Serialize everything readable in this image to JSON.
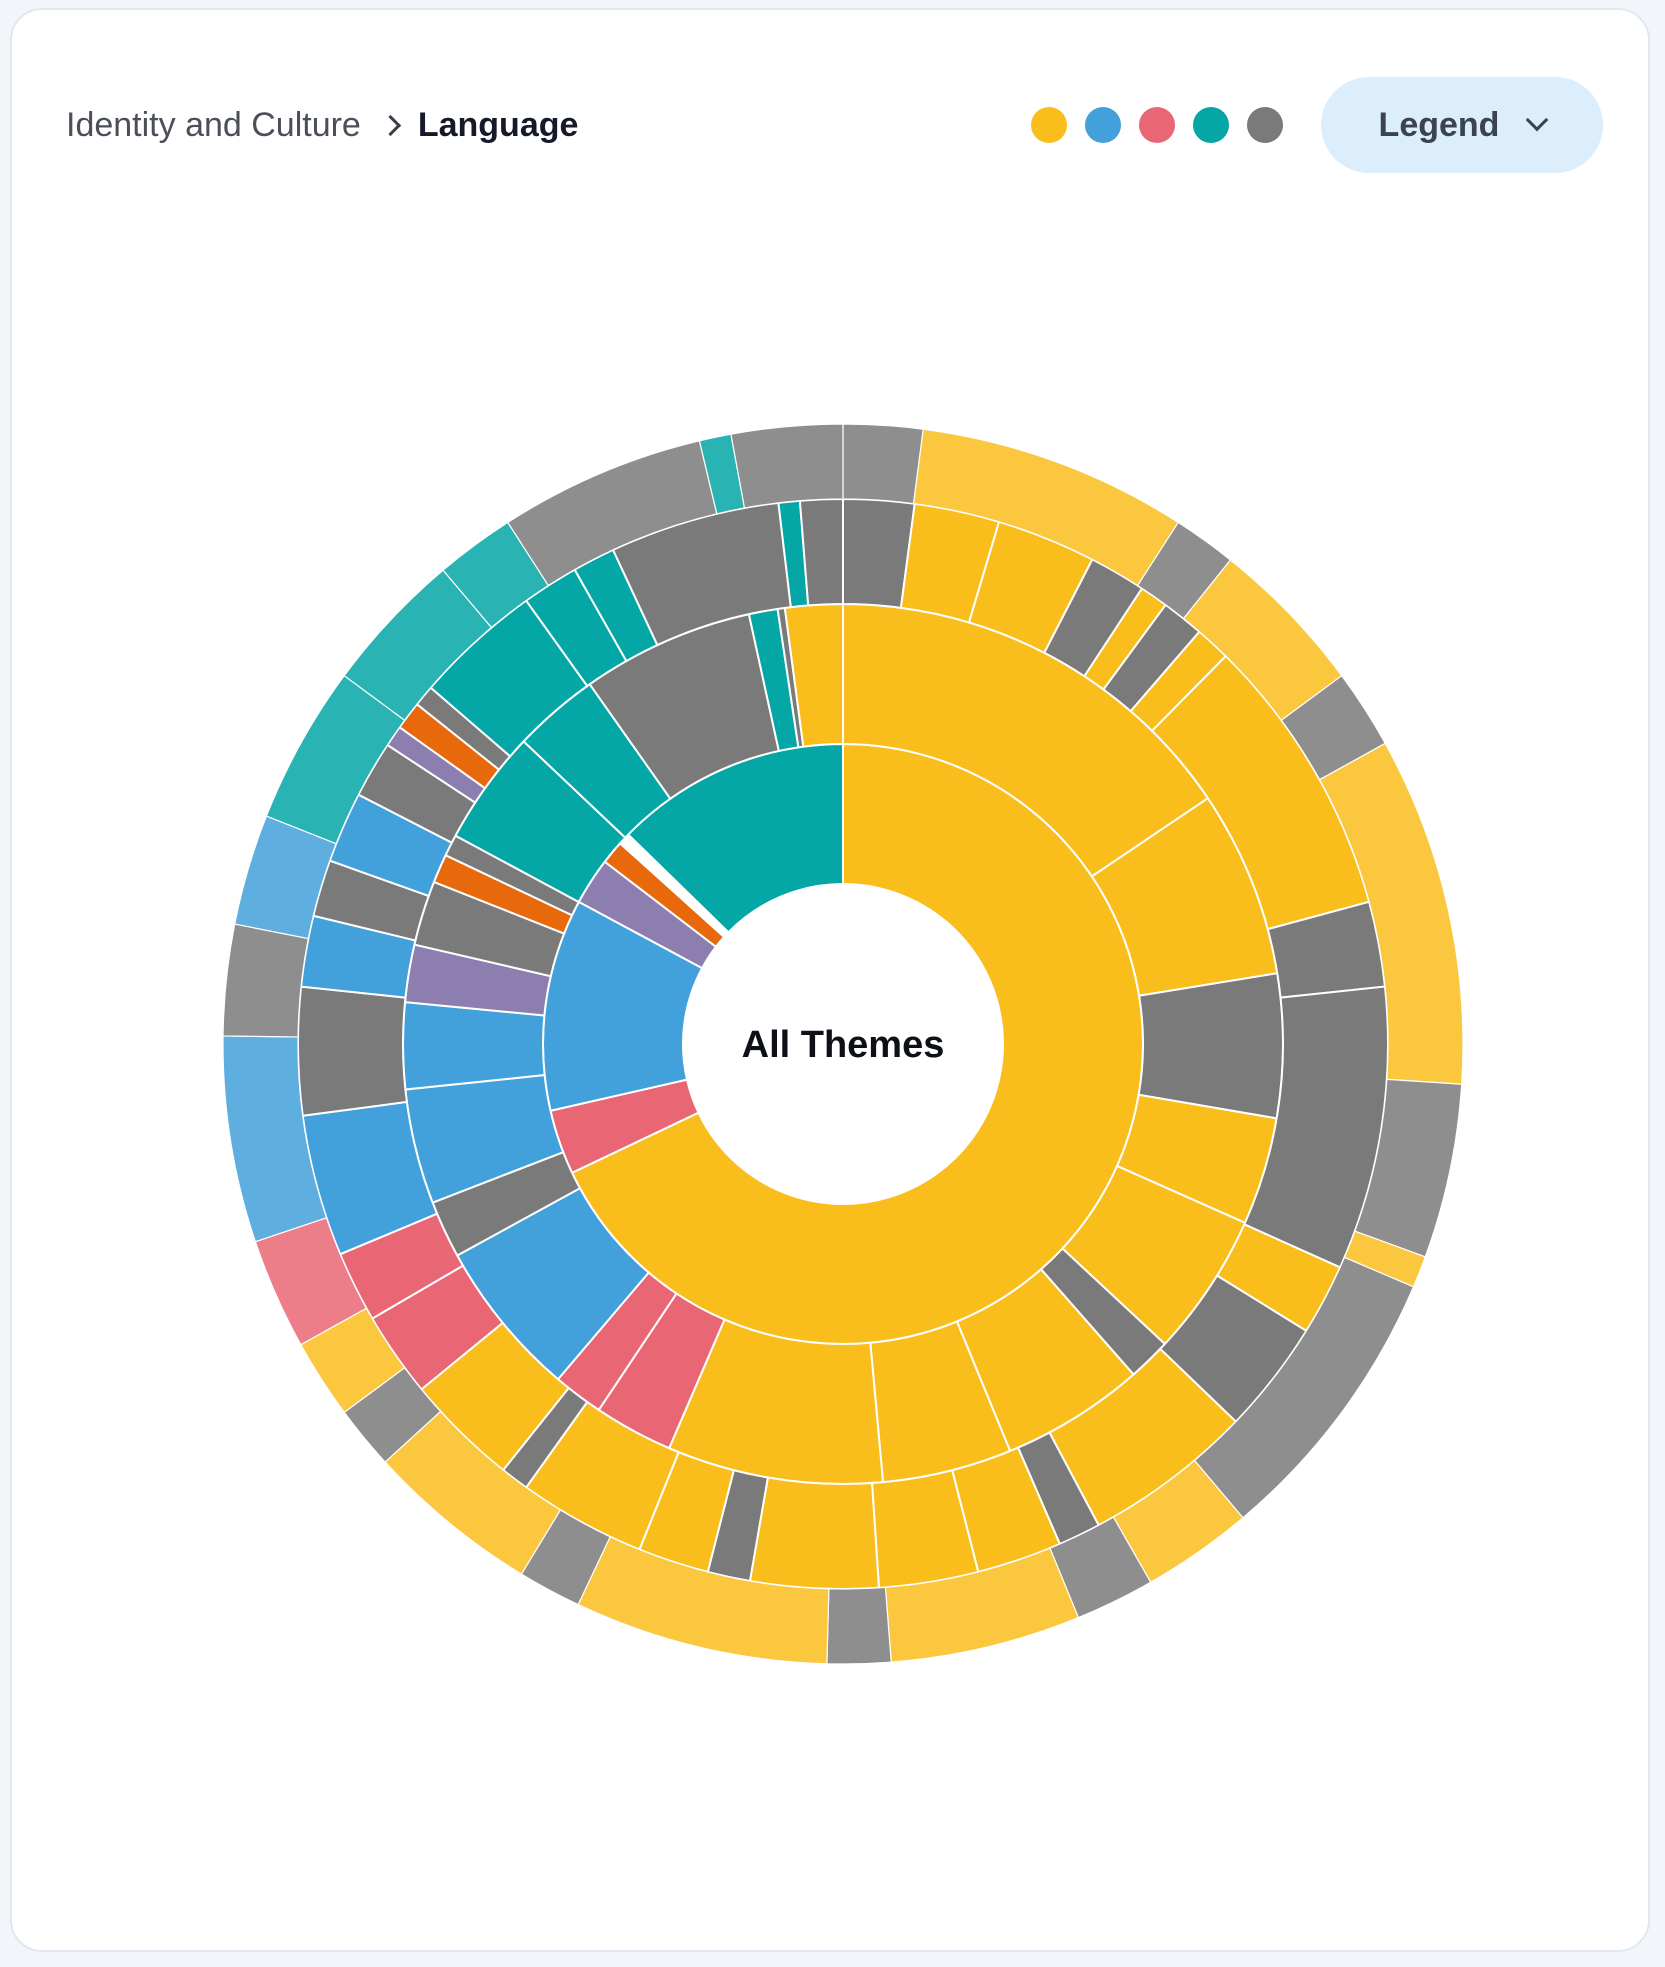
{
  "breadcrumb": {
    "parent": "Identity and Culture",
    "current": "Language"
  },
  "legend": {
    "label": "Legend",
    "swatch_colors": [
      "#f9bd1c",
      "#42a0db",
      "#e96674",
      "#04a6a6",
      "#7a7a7a"
    ]
  },
  "chart_data": {
    "type": "sunburst",
    "center_label": "All Themes",
    "rings": [
      {
        "level": 1,
        "segments": [
          {
            "color": "#f9bd1c",
            "value": 214
          },
          {
            "color": "#e96674",
            "value": 11
          },
          {
            "color": "#42a0db",
            "value": 36
          },
          {
            "color": "#8c7fb0",
            "value": 8
          },
          {
            "color": "#e8680c",
            "value": 4
          },
          {
            "color": "#ffffff",
            "value": 2
          },
          {
            "color": "#04a6a6",
            "value": 40
          }
        ]
      },
      {
        "level": 2,
        "segments": [
          {
            "color": "#f9bd1c",
            "value": 59
          },
          {
            "color": "#f9bd1c",
            "value": 26
          },
          {
            "color": "#7a7a7a",
            "value": 20
          },
          {
            "color": "#f9bd1c",
            "value": 15
          },
          {
            "color": "#f9bd1c",
            "value": 20
          },
          {
            "color": "#7a7a7a",
            "value": 6
          },
          {
            "color": "#f9bd1c",
            "value": 20
          },
          {
            "color": "#f9bd1c",
            "value": 18
          },
          {
            "color": "#f9bd1c",
            "value": 30
          },
          {
            "color": "#e96674",
            "value": 11
          },
          {
            "color": "#e96674",
            "value": 7
          },
          {
            "color": "#42a0db",
            "value": 22
          },
          {
            "color": "#7a7a7a",
            "value": 8
          },
          {
            "color": "#42a0db",
            "value": 16
          },
          {
            "color": "#42a0db",
            "value": 12
          },
          {
            "color": "#8c7fb0",
            "value": 8
          },
          {
            "color": "#7a7a7a",
            "value": 9
          },
          {
            "color": "#e8680c",
            "value": 4
          },
          {
            "color": "#7a7a7a",
            "value": 3
          },
          {
            "color": "#04a6a6",
            "value": 16
          },
          {
            "color": "#04a6a6",
            "value": 12
          },
          {
            "color": "#7a7a7a",
            "value": 24
          },
          {
            "color": "#04a6a6",
            "value": 4
          },
          {
            "color": "#7a7a7a",
            "value": 1
          },
          {
            "color": "#f9bd1c",
            "value": 8
          }
        ]
      },
      {
        "level": 3,
        "segments": [
          {
            "color": "#7a7a7a",
            "value": 10
          },
          {
            "color": "#f9bd1c",
            "value": 12
          },
          {
            "color": "#f9bd1c",
            "value": 14
          },
          {
            "color": "#7a7a7a",
            "value": 8
          },
          {
            "color": "#f9bd1c",
            "value": 4
          },
          {
            "color": "#7a7a7a",
            "value": 6
          },
          {
            "color": "#f9bd1c",
            "value": 5
          },
          {
            "color": "#f9bd1c",
            "value": 40
          },
          {
            "color": "#7a7a7a",
            "value": 12
          },
          {
            "color": "#7a7a7a",
            "value": 40
          },
          {
            "color": "#f9bd1c",
            "value": 10
          },
          {
            "color": "#7a7a7a",
            "value": 16
          },
          {
            "color": "#f9bd1c",
            "value": 24
          },
          {
            "color": "#7a7a7a",
            "value": 6
          },
          {
            "color": "#f9bd1c",
            "value": 12
          },
          {
            "color": "#f9bd1c",
            "value": 14
          },
          {
            "color": "#f9bd1c",
            "value": 18
          },
          {
            "color": "#7a7a7a",
            "value": 6
          },
          {
            "color": "#f9bd1c",
            "value": 10
          },
          {
            "color": "#f9bd1c",
            "value": 18
          },
          {
            "color": "#7a7a7a",
            "value": 4
          },
          {
            "color": "#f9bd1c",
            "value": 16
          },
          {
            "color": "#e96674",
            "value": 12
          },
          {
            "color": "#e96674",
            "value": 10
          },
          {
            "color": "#42a0db",
            "value": 20
          },
          {
            "color": "#7a7a7a",
            "value": 18
          },
          {
            "color": "#42a0db",
            "value": 10
          },
          {
            "color": "#7a7a7a",
            "value": 8
          },
          {
            "color": "#42a0db",
            "value": 10
          },
          {
            "color": "#7a7a7a",
            "value": 8
          },
          {
            "color": "#8c7fb0",
            "value": 3
          },
          {
            "color": "#e8680c",
            "value": 4
          },
          {
            "color": "#7a7a7a",
            "value": 3
          },
          {
            "color": "#04a6a6",
            "value": 18
          },
          {
            "color": "#04a6a6",
            "value": 8
          },
          {
            "color": "#04a6a6",
            "value": 6
          },
          {
            "color": "#7a7a7a",
            "value": 24
          },
          {
            "color": "#04a6a6",
            "value": 3
          },
          {
            "color": "#7a7a7a",
            "value": 6
          }
        ]
      },
      {
        "level": 4,
        "segments": [
          {
            "color": "#7a7a7a",
            "value": 10
          },
          {
            "color": "#f9bd1c",
            "value": 34
          },
          {
            "color": "#7a7a7a",
            "value": 8
          },
          {
            "color": "#f9bd1c",
            "value": 20
          },
          {
            "color": "#7a7a7a",
            "value": 10
          },
          {
            "color": "#f9bd1c",
            "value": 44
          },
          {
            "color": "#7a7a7a",
            "value": 22
          },
          {
            "color": "#f9bd1c",
            "value": 4
          },
          {
            "color": "#7a7a7a",
            "value": 36
          },
          {
            "color": "#f9bd1c",
            "value": 14
          },
          {
            "color": "#7a7a7a",
            "value": 10
          },
          {
            "color": "#f9bd1c",
            "value": 24
          },
          {
            "color": "#7a7a7a",
            "value": 8
          },
          {
            "color": "#f9bd1c",
            "value": 32
          },
          {
            "color": "#7a7a7a",
            "value": 8
          },
          {
            "color": "#f9bd1c",
            "value": 22
          },
          {
            "color": "#7a7a7a",
            "value": 8
          },
          {
            "color": "#f9bd1c",
            "value": 10
          },
          {
            "color": "#e96674",
            "value": 14
          },
          {
            "color": "#42a0db",
            "value": 26
          },
          {
            "color": "#7a7a7a",
            "value": 14
          },
          {
            "color": "#42a0db",
            "value": 14
          },
          {
            "color": "#04a6a6",
            "value": 20
          },
          {
            "color": "#04a6a6",
            "value": 18
          },
          {
            "color": "#04a6a6",
            "value": 10
          },
          {
            "color": "#7a7a7a",
            "value": 26
          },
          {
            "color": "#04a6a6",
            "value": 4
          },
          {
            "color": "#7a7a7a",
            "value": 14
          }
        ]
      }
    ]
  }
}
